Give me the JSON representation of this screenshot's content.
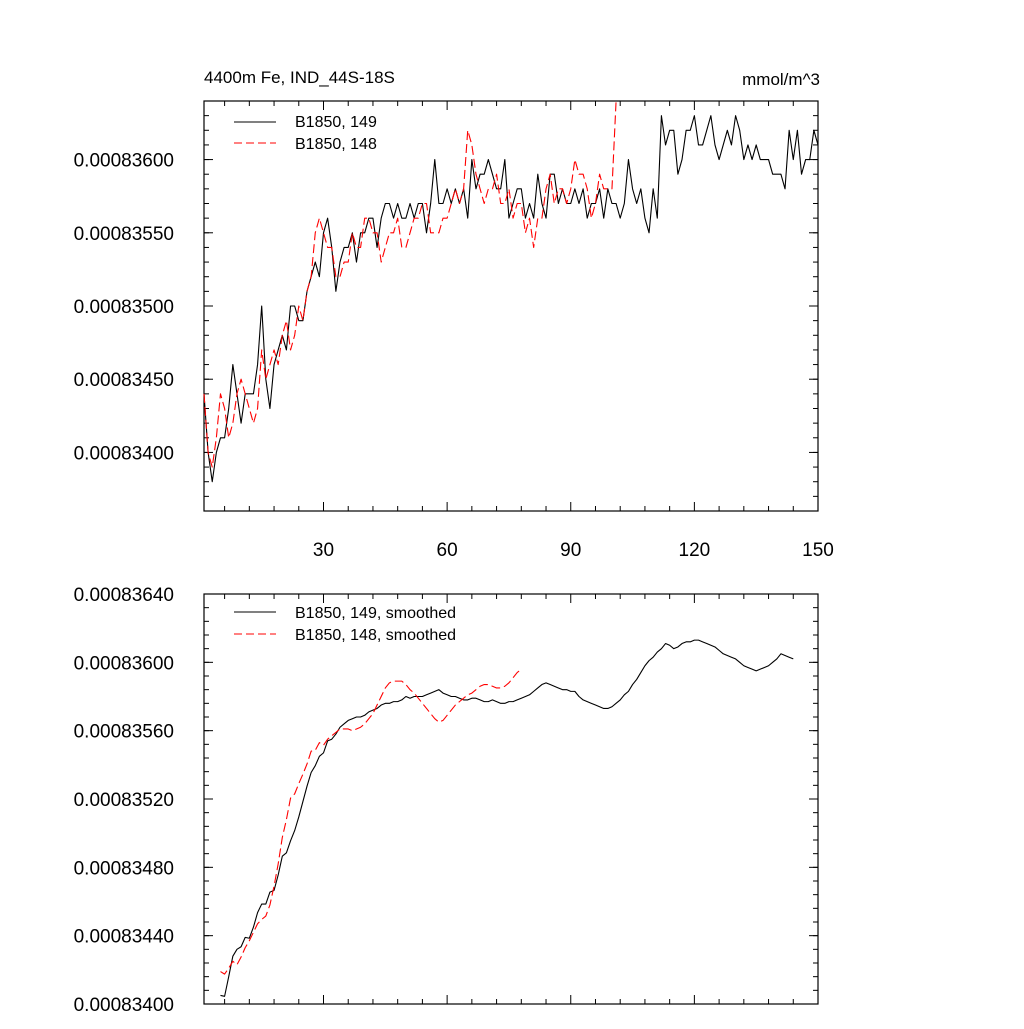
{
  "chart_data": [
    {
      "type": "line",
      "title": "4400m Fe, IND_44S-18S",
      "units": "mmol/m^3",
      "xlim": [
        1,
        150
      ],
      "ylim": [
        0.0008336,
        0.0008364
      ],
      "x_ticks": [
        30,
        60,
        90,
        120,
        150
      ],
      "x_tick_labels": [
        "30",
        "60",
        "90",
        "120",
        "150"
      ],
      "y_ticks": [
        0.000834,
        0.0008345,
        0.000835,
        0.0008355,
        0.000836
      ],
      "y_tick_labels": [
        "0.00083400",
        "0.00083450",
        "0.00083500",
        "0.00083550",
        "0.00083600"
      ],
      "legend": "top-left",
      "series": [
        {
          "name": "B1850, 149",
          "color": "#000000",
          "style": "solid",
          "x_start": 1,
          "values": [
            0.0008344,
            0.000834,
            0.0008338,
            0.000834,
            0.0008341,
            0.0008341,
            0.0008343,
            0.0008346,
            0.0008344,
            0.0008342,
            0.0008344,
            0.0008344,
            0.0008344,
            0.0008346,
            0.000835,
            0.0008345,
            0.0008343,
            0.0008346,
            0.0008347,
            0.0008348,
            0.0008347,
            0.000835,
            0.000835,
            0.0008349,
            0.0008349,
            0.0008351,
            0.0008352,
            0.0008353,
            0.0008352,
            0.0008355,
            0.0008356,
            0.0008354,
            0.0008351,
            0.0008353,
            0.0008354,
            0.0008354,
            0.0008355,
            0.0008353,
            0.0008355,
            0.0008355,
            0.0008356,
            0.0008356,
            0.0008354,
            0.0008356,
            0.0008357,
            0.0008357,
            0.0008356,
            0.0008357,
            0.0008356,
            0.0008356,
            0.0008357,
            0.0008356,
            0.0008357,
            0.0008357,
            0.0008355,
            0.0008357,
            0.000836,
            0.0008357,
            0.0008357,
            0.0008358,
            0.0008357,
            0.0008358,
            0.0008357,
            0.0008358,
            0.0008356,
            0.000836,
            0.0008358,
            0.0008359,
            0.0008359,
            0.000836,
            0.0008359,
            0.0008358,
            0.0008358,
            0.000836,
            0.0008356,
            0.0008357,
            0.0008358,
            0.0008358,
            0.0008356,
            0.0008357,
            0.0008356,
            0.0008359,
            0.0008357,
            0.0008356,
            0.0008359,
            0.0008359,
            0.0008357,
            0.0008358,
            0.0008357,
            0.0008357,
            0.0008358,
            0.0008357,
            0.0008358,
            0.0008356,
            0.0008357,
            0.0008357,
            0.0008358,
            0.0008356,
            0.0008358,
            0.0008357,
            0.0008357,
            0.0008356,
            0.0008357,
            0.000836,
            0.0008358,
            0.0008357,
            0.0008358,
            0.0008356,
            0.0008355,
            0.0008358,
            0.0008356,
            0.0008363,
            0.0008361,
            0.0008362,
            0.0008362,
            0.0008359,
            0.000836,
            0.0008362,
            0.0008362,
            0.0008363,
            0.0008361,
            0.0008361,
            0.0008362,
            0.0008363,
            0.0008361,
            0.000836,
            0.0008361,
            0.0008362,
            0.0008361,
            0.0008363,
            0.0008362,
            0.000836,
            0.0008361,
            0.000836,
            0.0008361,
            0.000836,
            0.000836,
            0.000836,
            0.0008359,
            0.0008359,
            0.0008359,
            0.0008358,
            0.0008362,
            0.000836,
            0.0008362,
            0.0008359,
            0.000836,
            0.000836,
            0.0008362,
            0.0008361
          ]
        },
        {
          "name": "B1850, 148",
          "color": "#ff0000",
          "style": "dashed",
          "x_start": 1,
          "values": [
            0.0008344,
            0.000834,
            0.0008339,
            0.0008341,
            0.0008344,
            0.0008343,
            0.0008341,
            0.0008342,
            0.0008344,
            0.0008345,
            0.0008344,
            0.0008343,
            0.0008342,
            0.0008343,
            0.0008347,
            0.0008345,
            0.0008346,
            0.0008347,
            0.0008346,
            0.0008348,
            0.0008349,
            0.0008347,
            0.0008348,
            0.000835,
            0.0008349,
            0.0008351,
            0.0008352,
            0.0008355,
            0.0008356,
            0.0008355,
            0.0008354,
            0.0008354,
            0.0008352,
            0.0008352,
            0.0008353,
            0.0008353,
            0.0008355,
            0.0008354,
            0.0008354,
            0.0008356,
            0.0008356,
            0.0008355,
            0.0008355,
            0.0008353,
            0.0008354,
            0.0008355,
            0.0008355,
            0.0008356,
            0.0008354,
            0.0008354,
            0.0008355,
            0.0008356,
            0.0008356,
            0.0008357,
            0.0008357,
            0.0008355,
            0.0008355,
            0.0008355,
            0.0008356,
            0.0008356,
            0.0008357,
            0.0008358,
            0.0008357,
            0.0008358,
            0.0008362,
            0.0008361,
            0.0008359,
            0.0008358,
            0.0008357,
            0.0008358,
            0.0008358,
            0.0008359,
            0.0008357,
            0.0008357,
            0.0008358,
            0.0008356,
            0.0008357,
            0.0008357,
            0.0008355,
            0.0008356,
            0.0008354,
            0.0008356,
            0.0008356,
            0.0008358,
            0.0008359,
            0.0008357,
            0.0008358,
            0.0008358,
            0.0008357,
            0.0008358,
            0.000836,
            0.0008359,
            0.0008359,
            0.0008358,
            0.0008356,
            0.0008357,
            0.0008359,
            0.0008358,
            0.0008358,
            0.0008358,
            0.0008364
          ]
        }
      ]
    },
    {
      "type": "line",
      "xlim": [
        1,
        150
      ],
      "ylim": [
        0.000834,
        0.0008364
      ],
      "x_ticks": [
        30,
        60,
        90,
        120,
        150
      ],
      "y_ticks": [
        0.000834,
        0.0008344,
        0.0008348,
        0.0008352,
        0.0008356,
        0.000836,
        0.0008364
      ],
      "y_tick_labels": [
        "0.00083400",
        "0.00083440",
        "0.00083480",
        "0.00083520",
        "0.00083560",
        "0.00083600",
        "0.00083640"
      ],
      "legend": "top-left",
      "series": [
        {
          "name": "B1850, 149, smoothed",
          "color": "#000000",
          "style": "solid",
          "x_start": 5,
          "values": [
            0.00083405,
            0.000834045,
            0.00083416,
            0.00083428,
            0.00083432,
            0.000834335,
            0.00083439,
            0.000834385,
            0.00083445,
            0.000834535,
            0.000834585,
            0.000834585,
            0.000834655,
            0.000834665,
            0.000834755,
            0.000834865,
            0.000834885,
            0.000834955,
            0.000835015,
            0.000835095,
            0.000835185,
            0.000835275,
            0.000835355,
            0.000835395,
            0.00083545,
            0.00083547,
            0.00083554,
            0.00083555,
            0.00083558,
            0.00083562,
            0.00083564,
            0.00083566,
            0.00083567,
            0.00083568,
            0.00083568,
            0.00083569,
            0.00083571,
            0.00083572,
            0.00083573,
            0.00083575,
            0.00083576,
            0.00083576,
            0.00083577,
            0.00083577,
            0.00083578,
            0.0008358,
            0.00083579,
            0.0008358,
            0.0008358,
            0.0008358,
            0.00083581,
            0.00083582,
            0.00083583,
            0.00083584,
            0.00083582,
            0.00083581,
            0.0008358,
            0.0008358,
            0.00083579,
            0.00083578,
            0.00083578,
            0.00083579,
            0.00083579,
            0.00083578,
            0.00083577,
            0.00083577,
            0.00083578,
            0.00083577,
            0.00083576,
            0.00083576,
            0.00083577,
            0.00083577,
            0.00083578,
            0.00083579,
            0.0008358,
            0.00083581,
            0.00083583,
            0.00083585,
            0.00083587,
            0.00083588,
            0.00083587,
            0.00083586,
            0.00083585,
            0.00083584,
            0.00083584,
            0.00083583,
            0.00083583,
            0.0008358,
            0.00083578,
            0.00083577,
            0.00083576,
            0.00083575,
            0.00083574,
            0.00083573,
            0.00083573,
            0.00083574,
            0.00083576,
            0.00083578,
            0.00083581,
            0.00083583,
            0.00083587,
            0.0008359,
            0.00083594,
            0.00083598,
            0.00083601,
            0.00083603,
            0.00083606,
            0.00083608,
            0.00083611,
            0.0008361,
            0.00083608,
            0.00083609,
            0.00083611,
            0.00083612,
            0.00083612,
            0.00083613,
            0.00083613,
            0.00083612,
            0.00083611,
            0.0008361,
            0.00083609,
            0.00083607,
            0.00083605,
            0.00083604,
            0.00083603,
            0.00083602,
            0.000836,
            0.00083598,
            0.00083597,
            0.00083596,
            0.00083595,
            0.00083596,
            0.00083597,
            0.00083598,
            0.000836,
            0.00083602,
            0.00083605,
            0.00083604,
            0.00083603,
            0.00083602
          ]
        },
        {
          "name": "B1850, 148, smoothed",
          "color": "#ff0000",
          "style": "dashed",
          "x_start": 5,
          "values": [
            0.00083419,
            0.000834175,
            0.00083421,
            0.00083425,
            0.00083423,
            0.000834275,
            0.00083433,
            0.00083437,
            0.00083442,
            0.00083447,
            0.000834495,
            0.000834515,
            0.00083458,
            0.00083469,
            0.00083482,
            0.000834975,
            0.00083508,
            0.000835205,
            0.00083523,
            0.00083529,
            0.000835345,
            0.000835405,
            0.00083548,
            0.000835485,
            0.00083553,
            0.000835515,
            0.00083555,
            0.00083557,
            0.00083559,
            0.00083561,
            0.00083561,
            0.00083561,
            0.0008356,
            0.00083561,
            0.00083562,
            0.00083564,
            0.00083567,
            0.0008357,
            0.00083575,
            0.0008358,
            0.00083585,
            0.00083588,
            0.00083589,
            0.00083589,
            0.00083589,
            0.00083587,
            0.00083584,
            0.00083582,
            0.00083579,
            0.00083576,
            0.00083573,
            0.0008357,
            0.00083567,
            0.00083565,
            0.00083566,
            0.00083569,
            0.00083572,
            0.00083575,
            0.00083577,
            0.00083579,
            0.00083581,
            0.00083582,
            0.00083584,
            0.00083586,
            0.00083587,
            0.00083587,
            0.00083586,
            0.00083585,
            0.00083585,
            0.00083586,
            0.00083588,
            0.00083591,
            0.00083594,
            0.00083596
          ]
        }
      ]
    }
  ]
}
